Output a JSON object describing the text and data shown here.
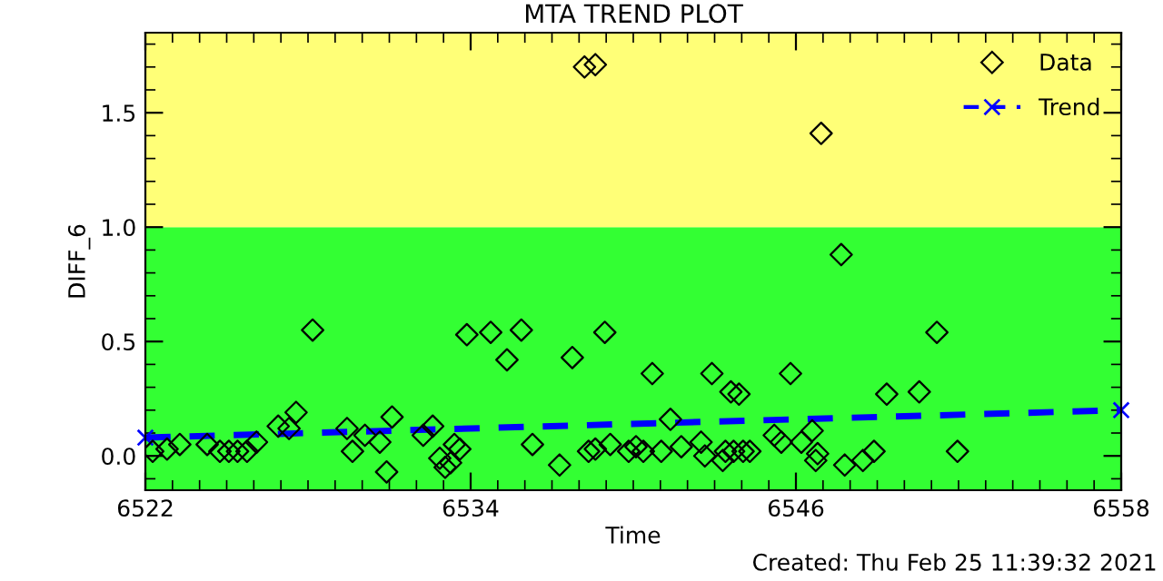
{
  "chart_data": {
    "type": "scatter",
    "title": "MTA TREND PLOT",
    "xlabel": "Time",
    "ylabel": "DIFF_6",
    "xlim": [
      6522,
      6558
    ],
    "xticks": [
      6522,
      6534,
      6546,
      6558
    ],
    "ylim": [
      -0.15,
      1.85
    ],
    "yticks": [
      {
        "value": 0,
        "label": "0.0"
      },
      0.5,
      {
        "value": 1,
        "label": "1.0"
      },
      1.5
    ],
    "legend": "top right",
    "grid": false,
    "bands": [
      {
        "axis": "y",
        "from": -0.15,
        "to": 1.0,
        "color": "#33ff33"
      },
      {
        "axis": "y",
        "from": 1.0,
        "to": 1.85,
        "color": "#ffff77"
      }
    ],
    "annotations": [
      "Created: Thu Feb 25 11:39:32 2021"
    ],
    "series": [
      {
        "name": "Data",
        "marker": "diamond",
        "color": "#000000",
        "x": [
          6522.27,
          6522.8,
          6523.27,
          6524.28,
          6524.75,
          6525.08,
          6525.4,
          6525.75,
          6526.1,
          6526.9,
          6527.3,
          6527.56,
          6528.17,
          6529.44,
          6529.64,
          6530.1,
          6530.65,
          6530.9,
          6531.1,
          6532.25,
          6532.6,
          6532.86,
          6533.06,
          6533.26,
          6533.4,
          6533.6,
          6533.86,
          6534.74,
          6535.34,
          6535.87,
          6536.28,
          6537.28,
          6537.75,
          6538.2,
          6538.35,
          6538.6,
          6538.6,
          6538.95,
          6539.15,
          6539.83,
          6540.1,
          6540.37,
          6540.7,
          6541.03,
          6541.37,
          6541.77,
          6542.5,
          6542.64,
          6542.9,
          6543.3,
          6543.4,
          6543.6,
          6543.7,
          6543.9,
          6544.05,
          6544.3,
          6545.2,
          6545.46,
          6545.8,
          6546.2,
          6546.6,
          6546.8,
          6546.73,
          6546.93,
          6547.67,
          6547.8,
          6548.47,
          6548.88,
          6549.35,
          6550.55,
          6551.2,
          6551.96
        ],
        "values": [
          0.02,
          0.03,
          0.05,
          0.05,
          0.02,
          0.02,
          0.02,
          0.02,
          0.06,
          0.13,
          0.12,
          0.19,
          0.55,
          0.12,
          0.02,
          0.09,
          0.06,
          -0.07,
          0.17,
          0.09,
          0.13,
          -0.01,
          -0.05,
          -0.03,
          0.05,
          0.03,
          0.53,
          0.54,
          0.42,
          0.55,
          0.05,
          -0.04,
          0.43,
          1.7,
          0.02,
          0.03,
          1.71,
          0.54,
          0.05,
          0.02,
          0.04,
          0.02,
          0.36,
          0.02,
          0.16,
          0.04,
          0.06,
          0.0,
          0.36,
          -0.02,
          0.02,
          0.28,
          0.02,
          0.27,
          0.02,
          0.02,
          0.09,
          0.06,
          0.36,
          0.06,
          0.11,
          0.01,
          -0.02,
          1.41,
          0.88,
          -0.04,
          -0.02,
          0.02,
          0.27,
          0.28,
          0.54,
          0.02
        ]
      },
      {
        "name": "Trend",
        "type": "line",
        "marker": "cross",
        "line_style": "dashed",
        "color": "#0000ff",
        "x": [
          6522,
          6558
        ],
        "values": [
          0.08,
          0.2
        ]
      }
    ]
  }
}
